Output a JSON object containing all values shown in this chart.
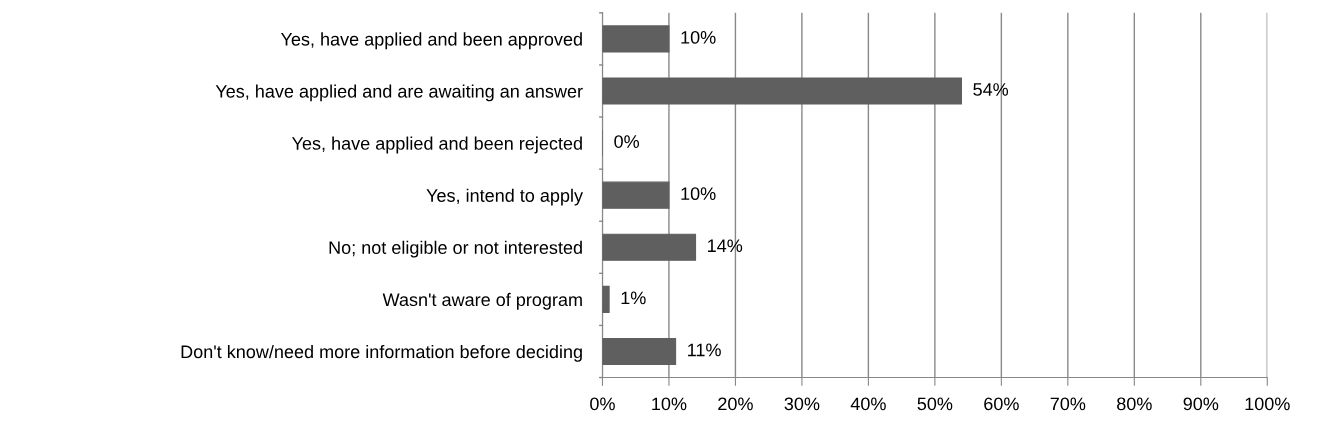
{
  "chart_data": {
    "type": "bar",
    "orientation": "horizontal",
    "categories": [
      "Yes, have applied and been approved",
      "Yes, have applied and are awaiting an answer",
      "Yes, have applied and been rejected",
      "Yes, intend to apply",
      "No; not eligible or not interested",
      "Wasn't aware of program",
      "Don't know/need more information before deciding"
    ],
    "values": [
      10,
      54,
      0,
      10,
      14,
      1,
      11
    ],
    "color": "#5f5f5f",
    "data_labels": true,
    "value_labels": [
      "10%",
      "54%",
      "0%",
      "10%",
      "14%",
      "1%",
      "11%"
    ],
    "xlim": [
      0,
      100
    ],
    "xticks": [
      {
        "value": 0,
        "label": "0%"
      },
      {
        "value": 10,
        "label": "10%"
      },
      {
        "value": 20,
        "label": "20%"
      },
      {
        "value": 30,
        "label": "30%"
      },
      {
        "value": 40,
        "label": "40%"
      },
      {
        "value": 50,
        "label": "50%"
      },
      {
        "value": 60,
        "label": "60%"
      },
      {
        "value": 70,
        "label": "70%"
      },
      {
        "value": 80,
        "label": "80%"
      },
      {
        "value": 90,
        "label": "90%"
      },
      {
        "value": 100,
        "label": "100%"
      }
    ],
    "grid": "x"
  }
}
